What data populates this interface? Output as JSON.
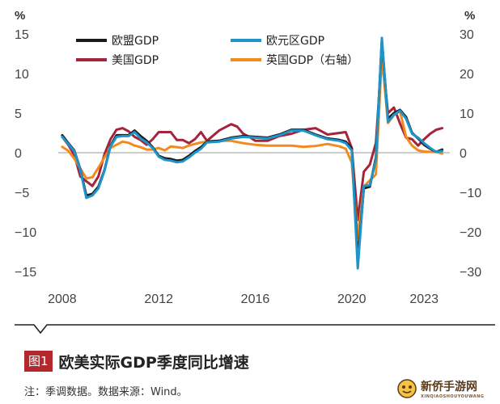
{
  "chart_data": {
    "type": "line",
    "left_unit": "%",
    "right_unit": "%",
    "left_ylim": [
      -15,
      15
    ],
    "right_ylim": [
      -30,
      30
    ],
    "left_ticks": [
      "15",
      "10",
      "5",
      "0",
      "−5",
      "−10",
      "−15"
    ],
    "right_ticks": [
      "30",
      "20",
      "10",
      "0",
      "−10",
      "−20",
      "−30"
    ],
    "x_ticks": [
      "2008",
      "2012",
      "2016",
      "2020",
      "2023"
    ],
    "x_tick_values": [
      2008,
      2012,
      2016,
      2020,
      2023
    ],
    "xlim": [
      2007.5,
      2024.2
    ],
    "grid": false,
    "legend_position": "top-left",
    "series": [
      {
        "name": "欧盟GDP",
        "color": "#1a1a1a",
        "axis": "left",
        "x": [
          2008.0,
          2008.25,
          2008.5,
          2008.75,
          2009.0,
          2009.25,
          2009.5,
          2009.75,
          2010.0,
          2010.25,
          2010.5,
          2010.75,
          2011.0,
          2011.25,
          2011.5,
          2011.75,
          2012.0,
          2012.25,
          2012.5,
          2012.75,
          2013.0,
          2013.25,
          2013.5,
          2013.75,
          2014.0,
          2014.5,
          2015.0,
          2015.5,
          2016.0,
          2016.5,
          2017.0,
          2017.5,
          2018.0,
          2018.5,
          2019.0,
          2019.5,
          2019.75,
          2020.0,
          2020.25,
          2020.5,
          2020.75,
          2021.0,
          2021.25,
          2021.5,
          2021.75,
          2022.0,
          2022.25,
          2022.5,
          2022.75,
          2023.0,
          2023.25,
          2023.5,
          2023.75
        ],
        "y": [
          2.2,
          1.2,
          0.3,
          -2.1,
          -5.4,
          -5.2,
          -4.3,
          -2.2,
          0.9,
          2.2,
          2.2,
          2.2,
          2.8,
          2.1,
          1.5,
          0.7,
          -0.4,
          -0.7,
          -0.8,
          -1.0,
          -0.9,
          -0.4,
          0.2,
          0.7,
          1.4,
          1.5,
          1.9,
          2.1,
          2.0,
          1.9,
          2.3,
          2.9,
          2.9,
          2.3,
          1.8,
          1.6,
          1.4,
          0.5,
          -13.5,
          -4.5,
          -4.3,
          -0.6,
          14.2,
          4.3,
          5.0,
          5.4,
          4.5,
          2.5,
          1.8,
          1.0,
          0.5,
          0.1,
          0.4
        ]
      },
      {
        "name": "欧元区GDP",
        "color": "#1e94c8",
        "axis": "left",
        "x": [
          2008.0,
          2008.25,
          2008.5,
          2008.75,
          2009.0,
          2009.25,
          2009.5,
          2009.75,
          2010.0,
          2010.25,
          2010.5,
          2010.75,
          2011.0,
          2011.25,
          2011.5,
          2011.75,
          2012.0,
          2012.25,
          2012.5,
          2012.75,
          2013.0,
          2013.25,
          2013.5,
          2013.75,
          2014.0,
          2014.5,
          2015.0,
          2015.5,
          2016.0,
          2016.5,
          2017.0,
          2017.5,
          2018.0,
          2018.5,
          2019.0,
          2019.5,
          2019.75,
          2020.0,
          2020.25,
          2020.5,
          2020.75,
          2021.0,
          2021.25,
          2021.5,
          2021.75,
          2022.0,
          2022.25,
          2022.5,
          2022.75,
          2023.0,
          2023.25,
          2023.5,
          2023.75
        ],
        "y": [
          2.0,
          1.1,
          0.2,
          -2.2,
          -5.7,
          -5.4,
          -4.5,
          -2.3,
          0.8,
          2.0,
          2.1,
          2.1,
          2.6,
          1.8,
          1.3,
          0.6,
          -0.5,
          -0.9,
          -1.0,
          -1.2,
          -1.1,
          -0.6,
          0.0,
          0.5,
          1.3,
          1.4,
          1.8,
          2.0,
          1.9,
          1.8,
          2.2,
          2.8,
          2.8,
          2.2,
          1.7,
          1.5,
          1.2,
          0.3,
          -14.6,
          -4.2,
          -4.1,
          -0.9,
          14.5,
          3.9,
          4.8,
          5.3,
          4.3,
          2.4,
          1.9,
          1.2,
          0.6,
          0.1,
          0.2
        ]
      },
      {
        "name": "美国GDP",
        "color": "#a4243b",
        "axis": "left",
        "x": [
          2008.0,
          2008.25,
          2008.5,
          2008.75,
          2009.0,
          2009.25,
          2009.5,
          2009.75,
          2010.0,
          2010.25,
          2010.5,
          2010.75,
          2011.0,
          2011.25,
          2011.5,
          2011.75,
          2012.0,
          2012.25,
          2012.5,
          2012.75,
          2013.0,
          2013.25,
          2013.5,
          2013.75,
          2014.0,
          2014.5,
          2015.0,
          2015.25,
          2015.5,
          2015.75,
          2016.0,
          2016.5,
          2017.0,
          2017.5,
          2018.0,
          2018.5,
          2019.0,
          2019.5,
          2019.75,
          2020.0,
          2020.25,
          2020.5,
          2020.75,
          2021.0,
          2021.25,
          2021.5,
          2021.75,
          2022.0,
          2022.25,
          2022.5,
          2022.75,
          2023.0,
          2023.25,
          2023.5,
          2023.75
        ],
        "y": [
          2.0,
          1.0,
          -0.3,
          -3.0,
          -3.6,
          -4.2,
          -3.0,
          -0.2,
          1.7,
          2.9,
          3.1,
          2.7,
          2.0,
          1.6,
          1.0,
          1.7,
          2.6,
          2.6,
          2.6,
          1.6,
          1.6,
          1.2,
          1.7,
          2.6,
          1.5,
          2.8,
          3.6,
          3.3,
          2.4,
          2.0,
          1.5,
          1.5,
          2.1,
          2.4,
          2.9,
          3.1,
          2.3,
          2.5,
          2.6,
          0.6,
          -8.5,
          -2.4,
          -1.5,
          1.2,
          12.5,
          5.0,
          5.7,
          3.7,
          1.9,
          1.7,
          0.9,
          1.7,
          2.4,
          2.9,
          3.1
        ]
      },
      {
        "name": "英国GDP（右轴）",
        "color": "#f28a1e",
        "axis": "right",
        "x": [
          2008.0,
          2008.25,
          2008.5,
          2008.75,
          2009.0,
          2009.25,
          2009.5,
          2009.75,
          2010.0,
          2010.25,
          2010.5,
          2010.75,
          2011.0,
          2011.25,
          2011.5,
          2011.75,
          2012.0,
          2012.25,
          2012.5,
          2012.75,
          2013.0,
          2013.25,
          2013.5,
          2013.75,
          2014.0,
          2014.5,
          2015.0,
          2015.5,
          2016.0,
          2016.5,
          2017.0,
          2017.5,
          2018.0,
          2018.5,
          2019.0,
          2019.5,
          2019.75,
          2020.0,
          2020.25,
          2020.5,
          2020.75,
          2021.0,
          2021.25,
          2021.5,
          2021.75,
          2022.0,
          2022.25,
          2022.5,
          2022.75,
          2023.0,
          2023.25,
          2023.5,
          2023.75
        ],
        "y": [
          1.5,
          0.5,
          -1.5,
          -4.0,
          -6.5,
          -6.2,
          -3.8,
          -1.2,
          1.2,
          2.0,
          2.8,
          2.5,
          1.8,
          1.4,
          0.8,
          0.8,
          1.2,
          0.6,
          1.6,
          1.4,
          1.2,
          1.8,
          2.2,
          2.6,
          2.8,
          3.0,
          3.0,
          2.4,
          2.0,
          1.8,
          1.8,
          1.8,
          1.5,
          1.7,
          2.2,
          1.6,
          1.0,
          -2.5,
          -21.5,
          -8.5,
          -7.0,
          -5.5,
          24.5,
          7.5,
          9.5,
          10.5,
          4.0,
          1.8,
          0.6,
          0.3,
          0.2,
          0.2,
          -0.2
        ]
      }
    ]
  },
  "caption": {
    "badge": "图1",
    "title": "欧美实际GDP季度同比增速",
    "note": "注：季调数据。数据来源：Wind。"
  },
  "watermark": {
    "text": "新侨手游网",
    "sub": "XINQIAOSHOUYOUWANG"
  }
}
